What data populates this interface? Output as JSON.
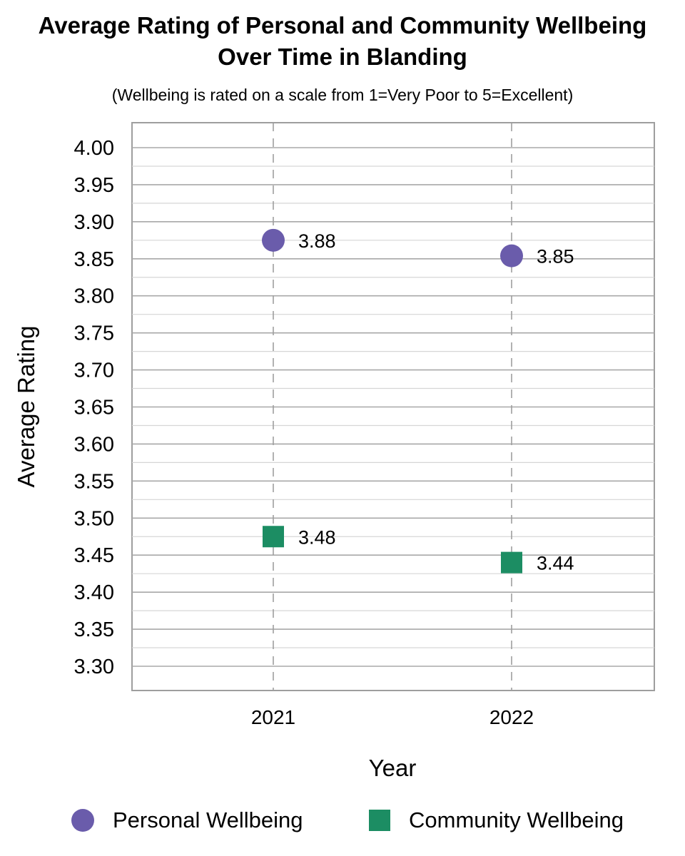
{
  "chart_data": {
    "type": "scatter",
    "title_line1": "Average Rating of Personal and Community Wellbeing",
    "title_line2": "Over Time in Blanding",
    "subtitle": "(Wellbeing is rated on a scale from 1=Very Poor to 5=Excellent)",
    "xlabel": "Year",
    "ylabel": "Average Rating",
    "categories": [
      "2021",
      "2022"
    ],
    "ylim": [
      3.3,
      4.0
    ],
    "y_ticks": [
      "4.00",
      "3.95",
      "3.90",
      "3.85",
      "3.80",
      "3.75",
      "3.70",
      "3.65",
      "3.60",
      "3.55",
      "3.50",
      "3.45",
      "3.40",
      "3.35",
      "3.30"
    ],
    "grid": true,
    "legend_position": "bottom",
    "series": [
      {
        "name": "Personal Wellbeing",
        "marker": "circle",
        "color": "#6a5cab",
        "values": [
          3.875,
          3.854
        ],
        "labels": [
          "3.88",
          "3.85"
        ]
      },
      {
        "name": "Community Wellbeing",
        "marker": "square",
        "color": "#1c8d63",
        "values": [
          3.475,
          3.44
        ],
        "labels": [
          "3.48",
          "3.44"
        ]
      }
    ]
  }
}
